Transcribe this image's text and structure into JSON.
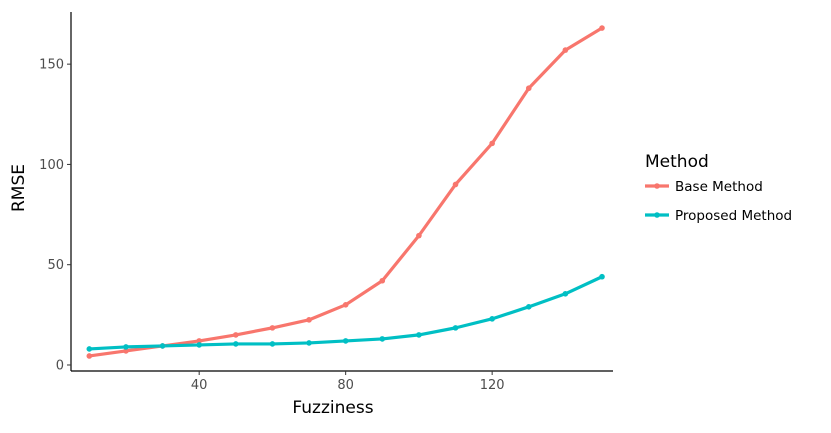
{
  "chart_data": {
    "type": "line",
    "xlabel": "Fuzziness",
    "ylabel": "RMSE",
    "xlim": [
      5,
      153
    ],
    "ylim": [
      -3,
      176
    ],
    "xticks": [
      40,
      80,
      120
    ],
    "yticks": [
      0,
      50,
      100,
      150
    ],
    "grid": false,
    "legend": {
      "title": "Method",
      "placement": "right"
    },
    "x": [
      10,
      20,
      30,
      40,
      50,
      60,
      70,
      80,
      90,
      100,
      110,
      120,
      130,
      140,
      150
    ],
    "series": [
      {
        "name": "Base Method",
        "color": "#F8766D",
        "values": [
          4.5,
          7,
          9.5,
          12,
          15,
          18.5,
          22.5,
          30,
          42,
          64.5,
          90,
          110.5,
          138,
          157,
          168
        ]
      },
      {
        "name": "Proposed Method",
        "color": "#00BFC4",
        "values": [
          8,
          9,
          9.5,
          10,
          10.5,
          10.5,
          11,
          12,
          13,
          15,
          18.5,
          23,
          29,
          35.5,
          44
        ]
      }
    ]
  }
}
